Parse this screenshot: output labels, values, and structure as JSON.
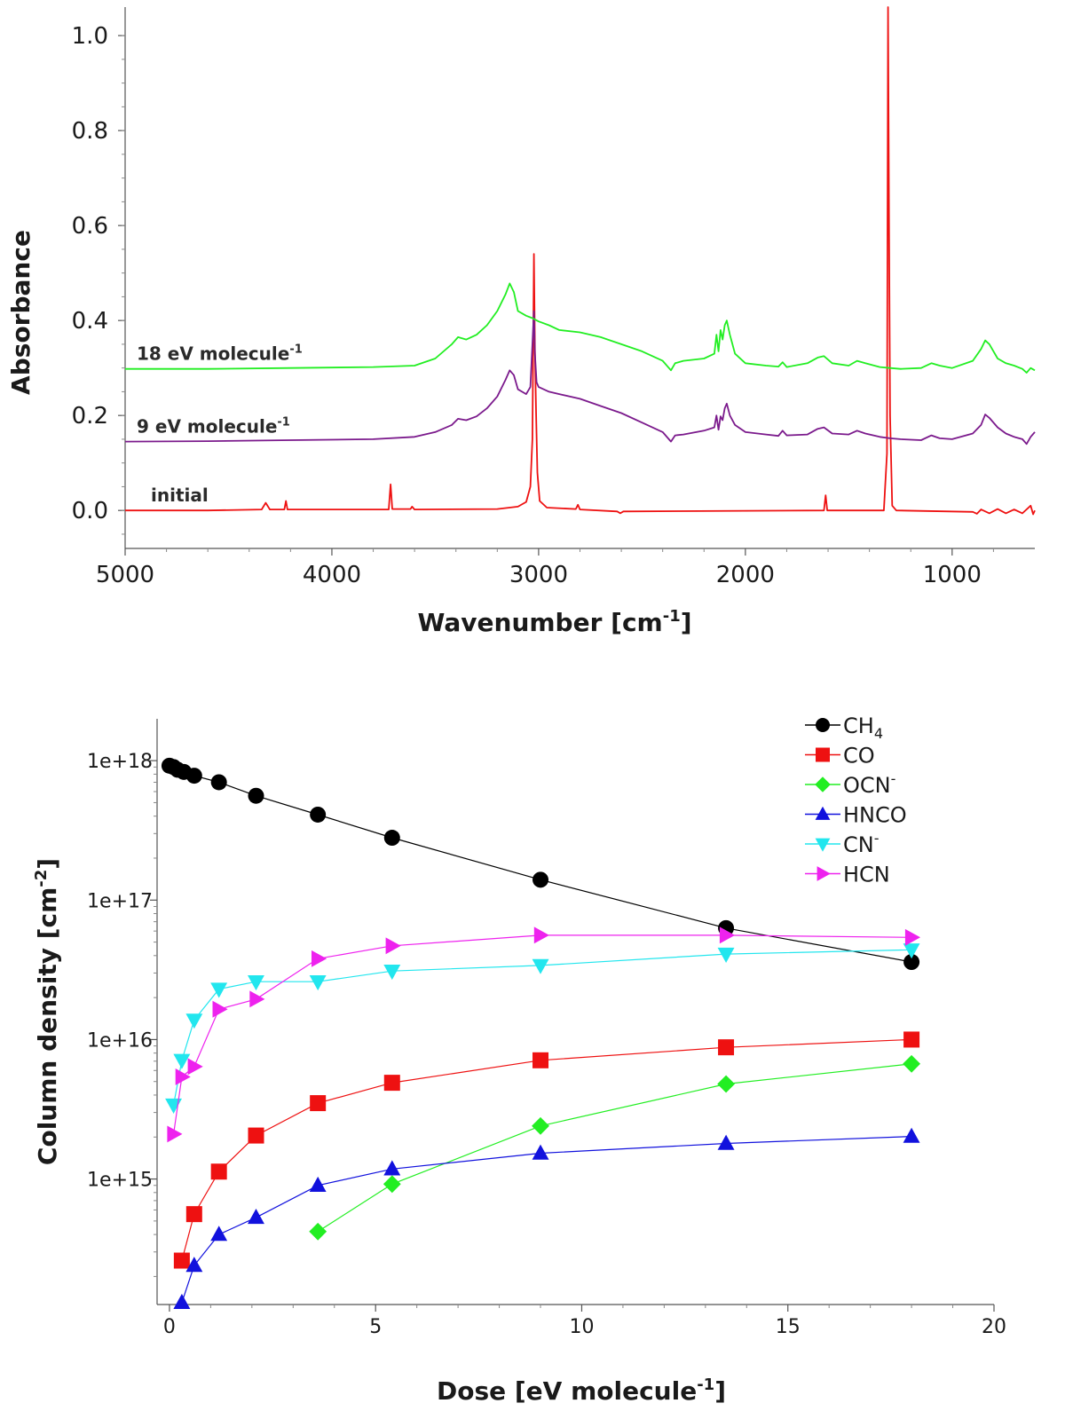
{
  "chart_data": [
    {
      "type": "line",
      "title": "",
      "xlabel": "Wavenumber [cm",
      "xlabel_sup": "-1",
      "xlabel_end": "]",
      "ylabel": "Absorbance",
      "xlim": [
        5000,
        600
      ],
      "ylim": [
        -0.08,
        1.06
      ],
      "xticks": [
        5000,
        4000,
        3000,
        2000,
        1000
      ],
      "yticks": [
        0.0,
        0.2,
        0.4,
        0.6,
        0.8,
        1.0
      ],
      "ytick_labels": [
        "0.0",
        "0.2",
        "0.4",
        "0.6",
        "0.8",
        "1.0"
      ],
      "series": [
        {
          "name": "initial",
          "label": "initial",
          "label_sup": "",
          "color": "#ee1111",
          "points": [
            [
              5000,
              0.0
            ],
            [
              4600,
              0.0
            ],
            [
              4340,
              0.002
            ],
            [
              4320,
              0.016
            ],
            [
              4300,
              0.002
            ],
            [
              4230,
              0.002
            ],
            [
              4222,
              0.02
            ],
            [
              4215,
              0.002
            ],
            [
              3725,
              0.002
            ],
            [
              3716,
              0.055
            ],
            [
              3708,
              0.003
            ],
            [
              3620,
              0.003
            ],
            [
              3612,
              0.008
            ],
            [
              3600,
              0.002
            ],
            [
              3200,
              0.003
            ],
            [
              3100,
              0.008
            ],
            [
              3060,
              0.018
            ],
            [
              3040,
              0.05
            ],
            [
              3030,
              0.15
            ],
            [
              3023,
              0.54
            ],
            [
              3018,
              0.34
            ],
            [
              3012,
              0.2
            ],
            [
              3006,
              0.08
            ],
            [
              2995,
              0.02
            ],
            [
              2960,
              0.006
            ],
            [
              2820,
              0.003
            ],
            [
              2810,
              0.012
            ],
            [
              2800,
              0.002
            ],
            [
              2620,
              -0.002
            ],
            [
              2605,
              -0.006
            ],
            [
              2590,
              -0.002
            ],
            [
              1620,
              0.0
            ],
            [
              1612,
              0.032
            ],
            [
              1604,
              0.0
            ],
            [
              1330,
              0.0
            ],
            [
              1315,
              0.12
            ],
            [
              1310,
              1.06
            ],
            [
              1305,
              0.58
            ],
            [
              1300,
              0.2
            ],
            [
              1290,
              0.01
            ],
            [
              1270,
              0.0
            ],
            [
              900,
              -0.003
            ],
            [
              880,
              -0.007
            ],
            [
              860,
              0.002
            ],
            [
              820,
              -0.006
            ],
            [
              780,
              0.003
            ],
            [
              740,
              -0.006
            ],
            [
              700,
              0.002
            ],
            [
              660,
              -0.006
            ],
            [
              620,
              0.01
            ],
            [
              608,
              -0.008
            ],
            [
              600,
              0.0
            ]
          ]
        },
        {
          "name": "9 eV",
          "label": "9 eV molecule",
          "label_sup": "-1",
          "color": "#7b1a8c",
          "points": [
            [
              5000,
              0.145
            ],
            [
              4600,
              0.146
            ],
            [
              4200,
              0.148
            ],
            [
              3800,
              0.15
            ],
            [
              3600,
              0.155
            ],
            [
              3500,
              0.165
            ],
            [
              3420,
              0.18
            ],
            [
              3390,
              0.193
            ],
            [
              3350,
              0.19
            ],
            [
              3300,
              0.198
            ],
            [
              3250,
              0.215
            ],
            [
              3200,
              0.24
            ],
            [
              3160,
              0.275
            ],
            [
              3140,
              0.295
            ],
            [
              3120,
              0.285
            ],
            [
              3100,
              0.255
            ],
            [
              3060,
              0.245
            ],
            [
              3040,
              0.26
            ],
            [
              3030,
              0.35
            ],
            [
              3023,
              0.42
            ],
            [
              3018,
              0.33
            ],
            [
              3010,
              0.27
            ],
            [
              3000,
              0.26
            ],
            [
              2950,
              0.25
            ],
            [
              2900,
              0.245
            ],
            [
              2800,
              0.235
            ],
            [
              2700,
              0.22
            ],
            [
              2600,
              0.205
            ],
            [
              2500,
              0.185
            ],
            [
              2400,
              0.165
            ],
            [
              2360,
              0.145
            ],
            [
              2340,
              0.158
            ],
            [
              2300,
              0.16
            ],
            [
              2200,
              0.168
            ],
            [
              2150,
              0.175
            ],
            [
              2140,
              0.2
            ],
            [
              2130,
              0.17
            ],
            [
              2120,
              0.198
            ],
            [
              2110,
              0.19
            ],
            [
              2100,
              0.215
            ],
            [
              2090,
              0.225
            ],
            [
              2075,
              0.2
            ],
            [
              2050,
              0.18
            ],
            [
              2000,
              0.165
            ],
            [
              1900,
              0.16
            ],
            [
              1840,
              0.157
            ],
            [
              1820,
              0.168
            ],
            [
              1800,
              0.158
            ],
            [
              1700,
              0.16
            ],
            [
              1650,
              0.172
            ],
            [
              1620,
              0.175
            ],
            [
              1580,
              0.162
            ],
            [
              1500,
              0.16
            ],
            [
              1460,
              0.168
            ],
            [
              1420,
              0.162
            ],
            [
              1350,
              0.155
            ],
            [
              1300,
              0.152
            ],
            [
              1250,
              0.15
            ],
            [
              1150,
              0.148
            ],
            [
              1100,
              0.158
            ],
            [
              1060,
              0.152
            ],
            [
              1000,
              0.15
            ],
            [
              900,
              0.162
            ],
            [
              860,
              0.18
            ],
            [
              840,
              0.202
            ],
            [
              820,
              0.195
            ],
            [
              780,
              0.175
            ],
            [
              740,
              0.162
            ],
            [
              700,
              0.155
            ],
            [
              660,
              0.15
            ],
            [
              640,
              0.14
            ],
            [
              620,
              0.155
            ],
            [
              600,
              0.165
            ]
          ]
        },
        {
          "name": "18 eV",
          "label": "18 eV molecule",
          "label_sup": "-1",
          "color": "#22ee22",
          "points": [
            [
              5000,
              0.298
            ],
            [
              4600,
              0.298
            ],
            [
              4200,
              0.3
            ],
            [
              3800,
              0.302
            ],
            [
              3600,
              0.305
            ],
            [
              3500,
              0.32
            ],
            [
              3420,
              0.35
            ],
            [
              3390,
              0.365
            ],
            [
              3350,
              0.36
            ],
            [
              3300,
              0.37
            ],
            [
              3250,
              0.39
            ],
            [
              3200,
              0.42
            ],
            [
              3160,
              0.455
            ],
            [
              3140,
              0.478
            ],
            [
              3120,
              0.46
            ],
            [
              3100,
              0.42
            ],
            [
              3060,
              0.41
            ],
            [
              3030,
              0.405
            ],
            [
              3000,
              0.398
            ],
            [
              2950,
              0.39
            ],
            [
              2900,
              0.38
            ],
            [
              2800,
              0.375
            ],
            [
              2700,
              0.365
            ],
            [
              2600,
              0.35
            ],
            [
              2500,
              0.335
            ],
            [
              2400,
              0.315
            ],
            [
              2360,
              0.295
            ],
            [
              2340,
              0.31
            ],
            [
              2300,
              0.315
            ],
            [
              2200,
              0.32
            ],
            [
              2150,
              0.33
            ],
            [
              2140,
              0.37
            ],
            [
              2130,
              0.335
            ],
            [
              2120,
              0.38
            ],
            [
              2110,
              0.36
            ],
            [
              2100,
              0.39
            ],
            [
              2090,
              0.4
            ],
            [
              2075,
              0.37
            ],
            [
              2050,
              0.33
            ],
            [
              2000,
              0.31
            ],
            [
              1900,
              0.305
            ],
            [
              1840,
              0.303
            ],
            [
              1820,
              0.312
            ],
            [
              1800,
              0.302
            ],
            [
              1700,
              0.31
            ],
            [
              1650,
              0.322
            ],
            [
              1620,
              0.325
            ],
            [
              1580,
              0.31
            ],
            [
              1500,
              0.305
            ],
            [
              1460,
              0.315
            ],
            [
              1420,
              0.31
            ],
            [
              1350,
              0.302
            ],
            [
              1300,
              0.3
            ],
            [
              1250,
              0.298
            ],
            [
              1150,
              0.3
            ],
            [
              1100,
              0.31
            ],
            [
              1060,
              0.305
            ],
            [
              1000,
              0.3
            ],
            [
              900,
              0.315
            ],
            [
              860,
              0.34
            ],
            [
              840,
              0.358
            ],
            [
              820,
              0.35
            ],
            [
              780,
              0.32
            ],
            [
              740,
              0.31
            ],
            [
              700,
              0.305
            ],
            [
              660,
              0.298
            ],
            [
              640,
              0.29
            ],
            [
              620,
              0.3
            ],
            [
              600,
              0.295
            ]
          ]
        }
      ]
    },
    {
      "type": "line",
      "title": "",
      "xlabel": "Dose [eV molecule",
      "xlabel_sup": "-1",
      "xlabel_end": "]",
      "ylabel": "Column density [cm",
      "ylabel_sup": "-2",
      "ylabel_end": "]",
      "yscale": "log",
      "xlim": [
        -0.3,
        20
      ],
      "ylim_log10": [
        14.1,
        18.3
      ],
      "xticks": [
        0,
        5,
        10,
        15,
        20
      ],
      "xtick_labels": [
        "0",
        "5",
        "10",
        "15",
        "20"
      ],
      "ytick_exps": [
        15,
        16,
        17,
        18
      ],
      "ytick_labels": [
        "1e+15",
        "1e+16",
        "1e+17",
        "1e+18"
      ],
      "legend_position": "top-right",
      "series": [
        {
          "name": "CH",
          "sub": "4",
          "sup": "",
          "color": "#000000",
          "marker": "circle",
          "x": [
            0.0,
            0.1,
            0.2,
            0.35,
            0.6,
            1.2,
            2.1,
            3.6,
            5.4,
            9.0,
            13.5,
            18.0
          ],
          "y": [
            9.2e+17,
            9e+17,
            8.6e+17,
            8.3e+17,
            7.8e+17,
            7e+17,
            5.6e+17,
            4.1e+17,
            2.8e+17,
            1.4e+17,
            6.3e+16,
            3.6e+16
          ]
        },
        {
          "name": "CO",
          "sub": "",
          "sup": "",
          "color": "#ee1111",
          "marker": "square",
          "x": [
            0.3,
            0.6,
            1.2,
            2.1,
            3.6,
            5.4,
            9.0,
            13.5,
            18.0
          ],
          "y": [
            260000000000000.0,
            560000000000000.0,
            1130000000000000.0,
            2050000000000000.0,
            3500000000000000.0,
            4900000000000000.0,
            7100000000000000.0,
            8800000000000000.0,
            1e+16
          ]
        },
        {
          "name": "OCN",
          "sub": "",
          "sup": "-",
          "color": "#22ee22",
          "marker": "diamond",
          "x": [
            3.6,
            5.4,
            9.0,
            13.5,
            18.0
          ],
          "y": [
            420000000000000.0,
            920000000000000.0,
            2400000000000000.0,
            4800000000000000.0,
            6700000000000000.0
          ]
        },
        {
          "name": "HNCO",
          "sub": "",
          "sup": "",
          "color": "#1111dd",
          "marker": "triangle-up",
          "x": [
            0.3,
            0.6,
            1.2,
            2.1,
            3.6,
            5.4,
            9.0,
            13.5,
            18.0
          ],
          "y": [
            130000000000000.0,
            240000000000000.0,
            400000000000000.0,
            530000000000000.0,
            900000000000000.0,
            1180000000000000.0,
            1530000000000000.0,
            1800000000000000.0,
            2020000000000000.0
          ]
        },
        {
          "name": "CN",
          "sub": "",
          "sup": "-",
          "color": "#22e6ee",
          "marker": "triangle-down",
          "x": [
            0.1,
            0.3,
            0.6,
            1.2,
            2.1,
            3.6,
            5.4,
            9.0,
            13.5,
            18.0
          ],
          "y": [
            3400000000000000.0,
            7100000000000000.0,
            1.38e+16,
            2.3e+16,
            2.6e+16,
            2.6e+16,
            3.1e+16,
            3.4e+16,
            4.1e+16,
            4.4e+16
          ]
        },
        {
          "name": "HCN",
          "sub": "",
          "sup": "",
          "color": "#ee22ee",
          "marker": "triangle-right",
          "x": [
            0.1,
            0.3,
            0.6,
            1.2,
            2.1,
            3.6,
            5.4,
            9.0,
            13.5,
            18.0
          ],
          "y": [
            2100000000000000.0,
            5400000000000000.0,
            6400000000000000.0,
            1.65e+16,
            1.95e+16,
            3.8e+16,
            4.7e+16,
            5.6e+16,
            5.6e+16,
            5.4e+16
          ]
        }
      ]
    }
  ]
}
